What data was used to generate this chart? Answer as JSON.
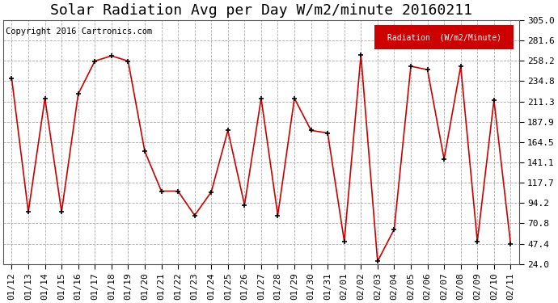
{
  "title": "Solar Radiation Avg per Day W/m2/minute 20160211",
  "copyright": "Copyright 2016 Cartronics.com",
  "legend_label": "Radiation  (W/m2/Minute)",
  "legend_bg": "#cc0000",
  "legend_text_color": "#ffffff",
  "x_labels": [
    "01/12",
    "01/13",
    "01/14",
    "01/15",
    "01/16",
    "01/17",
    "01/18",
    "01/19",
    "01/20",
    "01/21",
    "01/22",
    "01/23",
    "01/24",
    "01/25",
    "01/26",
    "01/27",
    "01/28",
    "01/29",
    "01/30",
    "01/31",
    "02/01",
    "02/02",
    "02/03",
    "02/04",
    "02/05",
    "02/06",
    "02/07",
    "02/08",
    "02/09",
    "02/10",
    "02/11"
  ],
  "y_values": [
    238.0,
    84.0,
    215.0,
    84.0,
    220.0,
    258.0,
    264.0,
    258.0,
    154.0,
    108.0,
    108.0,
    80.0,
    107.0,
    178.0,
    92.0,
    215.0,
    80.0,
    215.0,
    178.0,
    175.0,
    50.0,
    265.0,
    27.0,
    64.0,
    252.0,
    248.0,
    145.0,
    252.0,
    50.0,
    213.0,
    47.0
  ],
  "line_color": "#cc0000",
  "marker_color": "#000000",
  "bg_color": "#ffffff",
  "plot_bg": "#ffffff",
  "grid_color": "#aaaaaa",
  "ylim": [
    24.0,
    305.0
  ],
  "yticks": [
    24.0,
    47.4,
    70.8,
    94.2,
    117.7,
    141.1,
    164.5,
    187.9,
    211.3,
    234.8,
    258.2,
    281.6,
    305.0
  ],
  "title_fontsize": 13,
  "tick_fontsize": 8,
  "copyright_fontsize": 7.5
}
